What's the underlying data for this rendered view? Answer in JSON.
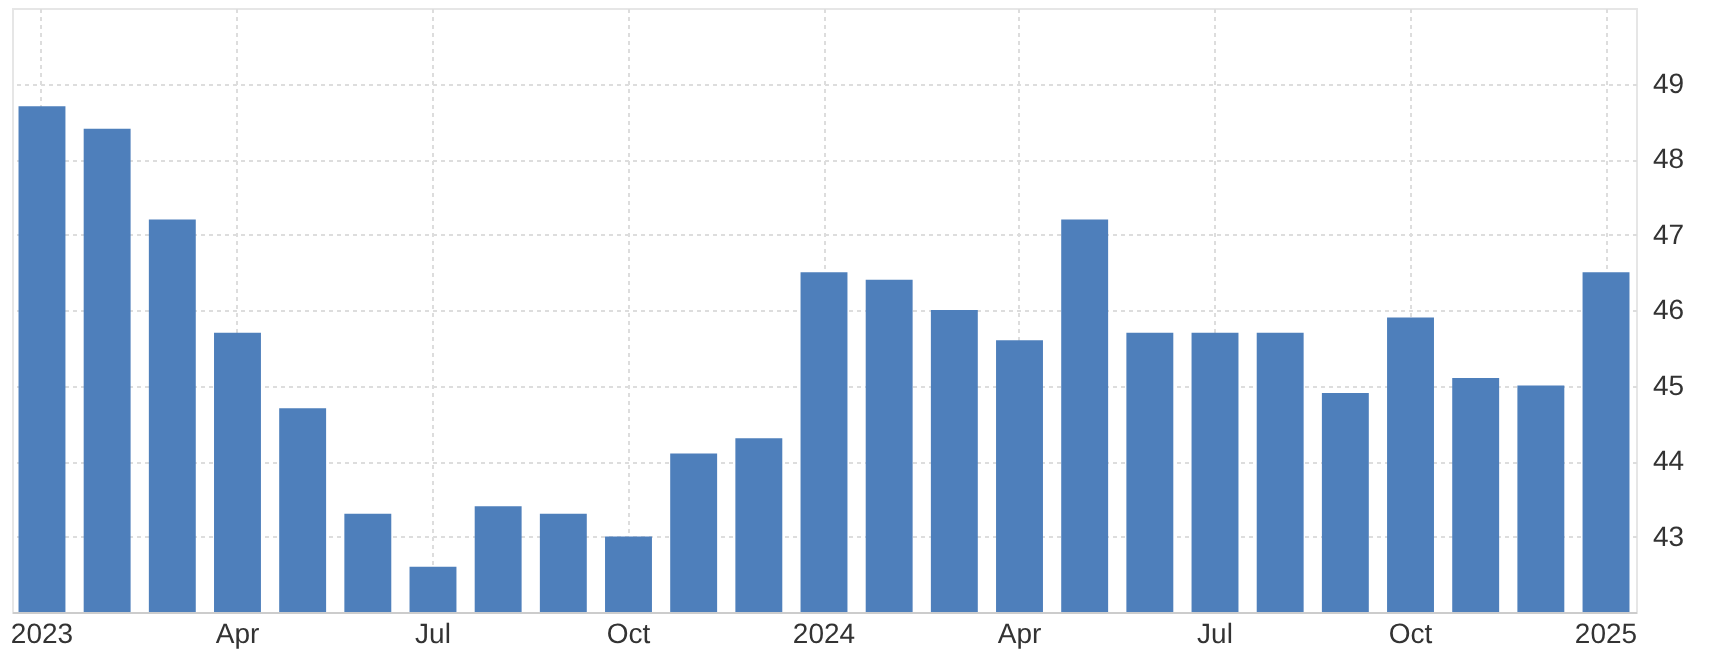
{
  "chart_data": {
    "type": "bar",
    "categories": [
      "2023",
      null,
      null,
      "Apr",
      null,
      null,
      "Jul",
      null,
      null,
      "Oct",
      null,
      null,
      "2024",
      null,
      null,
      "Apr",
      null,
      null,
      "Jul",
      null,
      null,
      "Oct",
      null,
      null,
      "2025"
    ],
    "values": [
      48.7,
      48.4,
      47.2,
      45.7,
      44.7,
      43.3,
      42.6,
      43.4,
      43.3,
      43.0,
      44.1,
      44.3,
      46.5,
      46.4,
      46.0,
      45.6,
      47.2,
      45.7,
      45.7,
      45.7,
      44.9,
      45.9,
      45.1,
      45.0,
      46.5
    ],
    "color": "#4e7fbb",
    "ylim": [
      42,
      50
    ],
    "yticks": [
      43,
      44,
      45,
      46,
      47,
      48,
      49
    ],
    "grid": true
  }
}
